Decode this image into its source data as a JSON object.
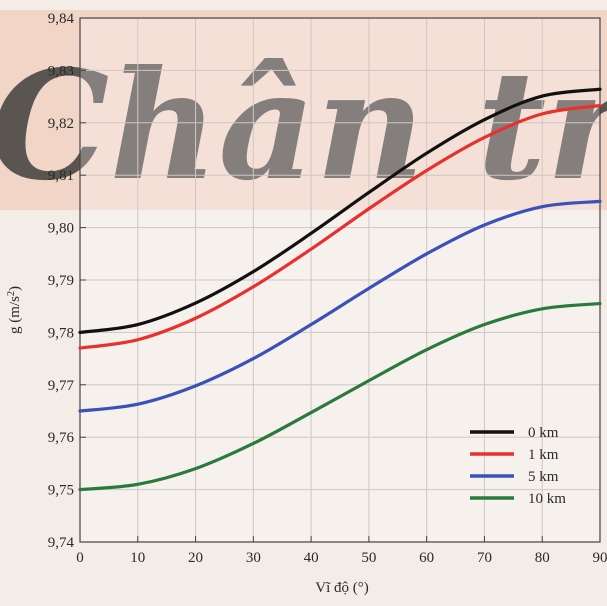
{
  "watermark": {
    "text": "Chân trời sáng tạo"
  },
  "chart_data": {
    "type": "line",
    "xlabel": "Vĩ độ (°)",
    "ylabel": "g (m/s²)",
    "ylabel_parts": {
      "main": "g (m/s",
      "sup": "2",
      "end": ")"
    },
    "xlim": [
      0,
      90
    ],
    "ylim": [
      9.74,
      9.84
    ],
    "x_ticks": [
      0,
      10,
      20,
      30,
      40,
      50,
      60,
      70,
      80,
      90
    ],
    "x_tick_labels": [
      "0",
      "10",
      "20",
      "30",
      "40",
      "50",
      "60",
      "70",
      "80",
      "90"
    ],
    "y_ticks": [
      9.74,
      9.75,
      9.76,
      9.77,
      9.78,
      9.79,
      9.8,
      9.81,
      9.82,
      9.83,
      9.84
    ],
    "y_tick_labels": [
      "9,74",
      "9,75",
      "9,76",
      "9,77",
      "9,78",
      "9,79",
      "9,80",
      "9,81",
      "9,82",
      "9,83",
      "9,84"
    ],
    "grid": true,
    "legend_position": "bottom-right",
    "x": [
      0,
      10,
      20,
      30,
      40,
      50,
      60,
      70,
      80,
      90
    ],
    "series": [
      {
        "name": "0 km",
        "color": "#111111",
        "values": [
          9.78,
          9.7815,
          9.7856,
          9.7916,
          9.7989,
          9.8067,
          9.8142,
          9.8206,
          9.8251,
          9.8264
        ]
      },
      {
        "name": "1 km",
        "color": "#e8302c",
        "values": [
          9.777,
          9.7786,
          9.7827,
          9.7887,
          9.7959,
          9.8036,
          9.8109,
          9.8172,
          9.8217,
          9.8233
        ]
      },
      {
        "name": "5 km",
        "color": "#3a52b8",
        "values": [
          9.765,
          9.7663,
          9.7698,
          9.775,
          9.7815,
          9.7884,
          9.795,
          9.8005,
          9.804,
          9.805
        ]
      },
      {
        "name": "10 km",
        "color": "#2a7a3c",
        "values": [
          9.75,
          9.751,
          9.754,
          9.7588,
          9.7647,
          9.7708,
          9.7767,
          9.7815,
          9.7845,
          9.7855
        ]
      }
    ]
  }
}
